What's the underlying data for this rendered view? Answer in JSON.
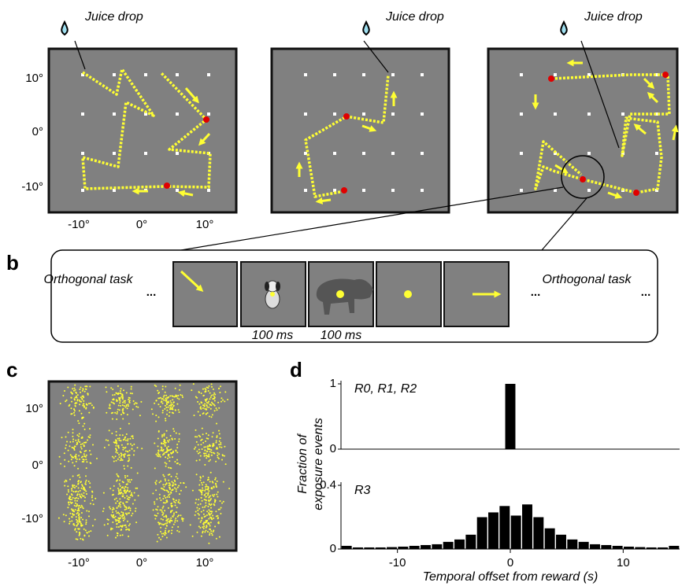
{
  "panels": {
    "a": {
      "juice_labels": [
        "Juice drop",
        "Juice drop",
        "Juice drop"
      ],
      "y_labels": [
        "10°",
        "0°",
        "-10°"
      ],
      "x_labels": [
        "-10°",
        "0°",
        "10°"
      ]
    },
    "b": {
      "letter": "b",
      "left_task": "Orthogonal task",
      "right_task": "Orthogonal task",
      "ellipsis": "...",
      "durations": [
        "100 ms",
        "100 ms"
      ]
    },
    "c": {
      "letter": "c",
      "y_labels": [
        "10°",
        "0°",
        "-10°"
      ],
      "x_labels": [
        "-10°",
        "0°",
        "10°"
      ]
    },
    "d": {
      "letter": "d"
    }
  },
  "chart_data": [
    {
      "type": "histogram",
      "label": "R0, R1, R2",
      "ylabel": [
        "Fraction of",
        "exposure events"
      ],
      "bins": [
        -0.5,
        0.5
      ],
      "values": [
        1
      ],
      "color": "#000000",
      "xlim": [
        -15,
        15
      ],
      "ylim": [
        0,
        1
      ],
      "yticks": [
        0,
        1
      ]
    },
    {
      "type": "histogram",
      "label": "R3",
      "xlabel": "Temporal offset from reward (s)",
      "bins": [
        -15,
        -14,
        -13,
        -12,
        -11,
        -10,
        -9,
        -8,
        -7,
        -6,
        -5,
        -4,
        -3,
        -2,
        -1,
        0,
        1,
        2,
        3,
        4,
        5,
        6,
        7,
        8,
        9,
        10,
        11,
        12,
        13,
        14,
        15
      ],
      "values": [
        0.02,
        0.01,
        0.01,
        0.01,
        0.012,
        0.015,
        0.02,
        0.025,
        0.03,
        0.045,
        0.06,
        0.09,
        0.2,
        0.23,
        0.27,
        0.21,
        0.28,
        0.2,
        0.13,
        0.09,
        0.06,
        0.045,
        0.03,
        0.025,
        0.02,
        0.015,
        0.012,
        0.01,
        0.01,
        0.02
      ],
      "color": "#000000",
      "xlim": [
        -15,
        15
      ],
      "ylim": [
        0,
        0.4
      ],
      "xticks": [
        -10,
        0,
        10
      ],
      "yticks": [
        0,
        0.4
      ]
    }
  ]
}
